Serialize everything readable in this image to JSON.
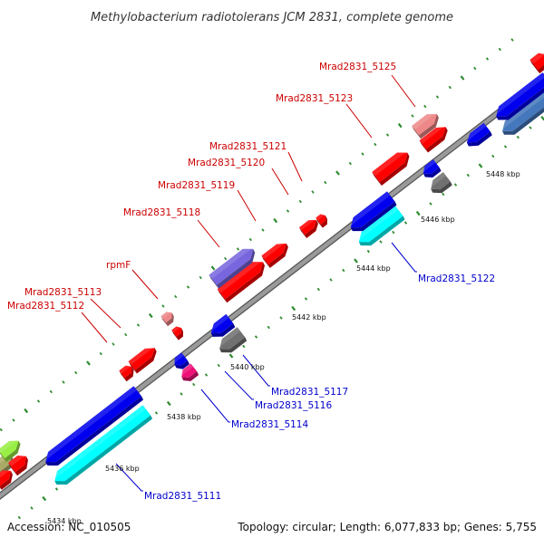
{
  "header": {
    "title": "Methylobacterium radiotolerans JCM 2831, complete genome"
  },
  "footer": {
    "accession": "Accession: NC_010505",
    "summary": "Topology: circular; Length: 6,077,833 bp; Genes: 5,755"
  },
  "colors": {
    "label_red": "#cc0000",
    "label_blue": "#0000cc",
    "backbone": "#888888",
    "tick": "#2e8b2e",
    "red": "#ff0000",
    "blue": "#0000ee",
    "cyan": "#00ffff",
    "gray": "#707070",
    "pink": "#ee8888",
    "magenta": "#ee1177",
    "purple": "#7766dd",
    "steel": "#4477bb",
    "olive": "#aaaa66",
    "lime": "#99ee44"
  },
  "scale_labels": [
    "5434 kbp",
    "5436 kbp",
    "5438 kbp",
    "5440 kbp",
    "5442 kbp",
    "5444 kbp",
    "5446 kbp",
    "5448 kbp"
  ],
  "forward_gene_labels": [
    "Mrad2831_5125",
    "Mrad2831_5123",
    "Mrad2831_5121",
    "Mrad2831_5120",
    "Mrad2831_5119",
    "Mrad2831_5118",
    "rpmF",
    "Mrad2831_5113",
    "Mrad2831_5112"
  ],
  "reverse_gene_labels": [
    "Mrad2831_5122",
    "Mrad2831_5117",
    "Mrad2831_5116",
    "Mrad2831_5114",
    "Mrad2831_5111"
  ],
  "features": [
    {
      "name": "gene-5111",
      "color": "cyan"
    },
    {
      "name": "gene-5111-cds",
      "color": "blue"
    },
    {
      "name": "gene-5112",
      "color": "red"
    },
    {
      "name": "gene-5113",
      "color": "red"
    },
    {
      "name": "gene-rpmF",
      "color": "pink"
    },
    {
      "name": "gene-rpmF-cds",
      "color": "red"
    },
    {
      "name": "gene-5114",
      "color": "magenta"
    },
    {
      "name": "gene-5114-cds",
      "color": "blue"
    },
    {
      "name": "gene-5116",
      "color": "gray"
    },
    {
      "name": "gene-5117",
      "color": "blue"
    },
    {
      "name": "gene-5118",
      "color": "red"
    },
    {
      "name": "gene-5118-region",
      "color": "purple"
    },
    {
      "name": "gene-5119",
      "color": "red"
    },
    {
      "name": "gene-5120",
      "color": "red"
    },
    {
      "name": "gene-5121",
      "color": "red"
    },
    {
      "name": "gene-5122",
      "color": "cyan"
    },
    {
      "name": "gene-5122-cds",
      "color": "blue"
    },
    {
      "name": "gene-5123",
      "color": "red"
    },
    {
      "name": "gene-5124",
      "color": "blue"
    },
    {
      "name": "gene-5124-cds",
      "color": "gray"
    },
    {
      "name": "gene-5125",
      "color": "red"
    },
    {
      "name": "gene-5125-region",
      "color": "pink"
    },
    {
      "name": "gene-5126",
      "color": "blue"
    },
    {
      "name": "gene-5126-cds",
      "color": "steel"
    },
    {
      "name": "gene-5127",
      "color": "blue"
    },
    {
      "name": "gene-5128",
      "color": "red"
    },
    {
      "name": "gene-edge-1",
      "color": "olive"
    },
    {
      "name": "gene-edge-2",
      "color": "lime"
    },
    {
      "name": "gene-edge-3",
      "color": "red"
    },
    {
      "name": "gene-edge-4",
      "color": "red"
    },
    {
      "name": "gene-top-right",
      "color": "red"
    }
  ]
}
